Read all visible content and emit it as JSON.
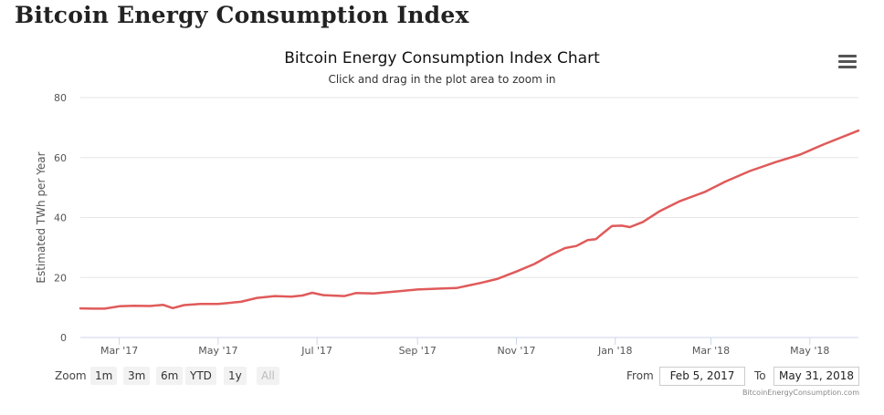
{
  "page": {
    "title": "Bitcoin Energy Consumption Index"
  },
  "chart_header": {
    "title": "Bitcoin Energy Consumption Index Chart",
    "subtitle": "Click and drag in the plot area to zoom in",
    "menu_icon": "hamburger-menu-icon"
  },
  "range_selector": {
    "zoom_label": "Zoom",
    "buttons": [
      "1m",
      "3m",
      "6m",
      "YTD",
      "1y",
      "All"
    ],
    "from_label": "From",
    "from_value": "Feb 5, 2017",
    "to_label": "To",
    "to_value": "May 31, 2018"
  },
  "credit": "BitcoinEnergyConsumption.com",
  "chart_data": {
    "type": "line",
    "title": "Bitcoin Energy Consumption Index Chart",
    "subtitle": "Click and drag in the plot area to zoom in",
    "xlabel": "",
    "ylabel": "Estimated TWh per Year",
    "ylim": [
      0,
      80
    ],
    "yticks": [
      0,
      20,
      40,
      60,
      80
    ],
    "xlim": [
      "2017-02-05",
      "2018-05-31"
    ],
    "xticks": [
      {
        "date": "2017-03-01",
        "label": "Mar '17"
      },
      {
        "date": "2017-05-01",
        "label": "May '17"
      },
      {
        "date": "2017-07-01",
        "label": "Jul '17"
      },
      {
        "date": "2017-09-01",
        "label": "Sep '17"
      },
      {
        "date": "2017-11-01",
        "label": "Nov '17"
      },
      {
        "date": "2018-01-01",
        "label": "Jan '18"
      },
      {
        "date": "2018-03-01",
        "label": "Mar '18"
      },
      {
        "date": "2018-05-01",
        "label": "May '18"
      }
    ],
    "grid": true,
    "series": [
      {
        "name": "Estimated TWh per Year",
        "color": "#e05a5a",
        "points": [
          [
            "2017-02-05",
            9.7
          ],
          [
            "2017-02-13",
            9.6
          ],
          [
            "2017-02-20",
            9.6
          ],
          [
            "2017-03-01",
            10.4
          ],
          [
            "2017-03-10",
            10.6
          ],
          [
            "2017-03-20",
            10.5
          ],
          [
            "2017-03-28",
            10.9
          ],
          [
            "2017-04-03",
            9.8
          ],
          [
            "2017-04-10",
            10.8
          ],
          [
            "2017-04-20",
            11.2
          ],
          [
            "2017-05-01",
            11.2
          ],
          [
            "2017-05-15",
            11.9
          ],
          [
            "2017-05-25",
            13.2
          ],
          [
            "2017-06-05",
            13.8
          ],
          [
            "2017-06-15",
            13.6
          ],
          [
            "2017-06-22",
            14.0
          ],
          [
            "2017-06-28",
            14.9
          ],
          [
            "2017-07-05",
            14.1
          ],
          [
            "2017-07-18",
            13.8
          ],
          [
            "2017-07-25",
            14.8
          ],
          [
            "2017-08-05",
            14.7
          ],
          [
            "2017-08-20",
            15.4
          ],
          [
            "2017-09-01",
            16.0
          ],
          [
            "2017-09-15",
            16.3
          ],
          [
            "2017-09-25",
            16.5
          ],
          [
            "2017-10-10",
            18.2
          ],
          [
            "2017-10-20",
            19.5
          ],
          [
            "2017-11-01",
            22.0
          ],
          [
            "2017-11-12",
            24.5
          ],
          [
            "2017-11-22",
            27.5
          ],
          [
            "2017-12-01",
            29.8
          ],
          [
            "2017-12-08",
            30.5
          ],
          [
            "2017-12-15",
            32.5
          ],
          [
            "2017-12-20",
            32.8
          ],
          [
            "2017-12-25",
            35.0
          ],
          [
            "2017-12-30",
            37.2
          ],
          [
            "2018-01-05",
            37.3
          ],
          [
            "2018-01-10",
            36.8
          ],
          [
            "2018-01-18",
            38.5
          ],
          [
            "2018-01-28",
            42.0
          ],
          [
            "2018-02-10",
            45.5
          ],
          [
            "2018-02-25",
            48.5
          ],
          [
            "2018-03-10",
            52.0
          ],
          [
            "2018-03-25",
            55.5
          ],
          [
            "2018-04-10",
            58.5
          ],
          [
            "2018-04-25",
            61.0
          ],
          [
            "2018-05-10",
            64.5
          ],
          [
            "2018-05-31",
            69.0
          ]
        ]
      }
    ]
  }
}
